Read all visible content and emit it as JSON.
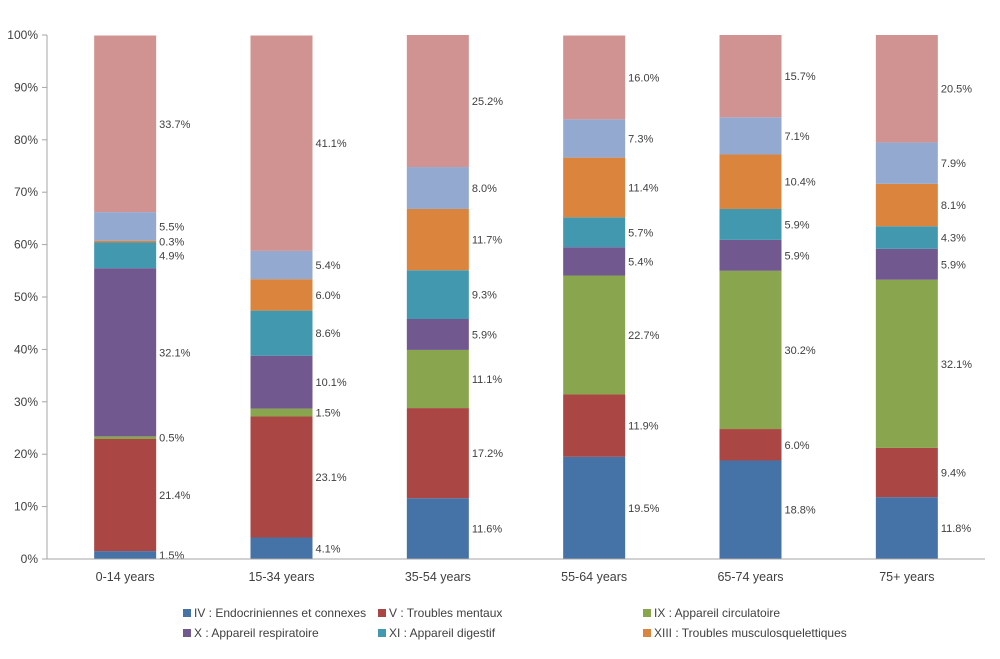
{
  "chart_data": {
    "type": "bar",
    "stacked": true,
    "percent": true,
    "title": "",
    "xlabel": "",
    "ylabel": "",
    "ylim": [
      0,
      100
    ],
    "yticks": [
      "0%",
      "10%",
      "20%",
      "30%",
      "40%",
      "50%",
      "60%",
      "70%",
      "80%",
      "90%",
      "100%"
    ],
    "grid": false,
    "legend_position": "bottom",
    "categories": [
      "0-14 years",
      "15-34 years",
      "35-54 years",
      "55-64 years",
      "65-74 years",
      "75+ years"
    ],
    "series": [
      {
        "name": "IV : Endocriniennes et connexes",
        "color": "#4572A7",
        "in_legend": true,
        "values": [
          1.5,
          4.1,
          11.6,
          19.5,
          18.8,
          11.8
        ]
      },
      {
        "name": "V : Troubles mentaux",
        "color": "#AA4643",
        "in_legend": true,
        "values": [
          21.4,
          23.1,
          17.2,
          11.9,
          6.0,
          9.4
        ]
      },
      {
        "name": "IX : Appareil circulatoire",
        "color": "#89A54E",
        "in_legend": true,
        "values": [
          0.5,
          1.5,
          11.1,
          22.7,
          30.2,
          32.1
        ]
      },
      {
        "name": "X : Appareil respiratoire",
        "color": "#71588F",
        "in_legend": true,
        "values": [
          32.1,
          10.1,
          5.9,
          5.4,
          5.9,
          5.9
        ]
      },
      {
        "name": "XI : Appareil digestif",
        "color": "#4198AF",
        "in_legend": true,
        "values": [
          4.9,
          8.6,
          9.3,
          5.7,
          5.9,
          4.3
        ]
      },
      {
        "name": "XIII : Troubles musculosquelettiques",
        "color": "#DB843D",
        "in_legend": true,
        "values": [
          0.3,
          6.0,
          11.7,
          11.4,
          10.4,
          8.1
        ]
      },
      {
        "name": "",
        "color": "#93A9CF",
        "in_legend": false,
        "values": [
          5.5,
          5.4,
          8.0,
          7.3,
          7.1,
          7.9
        ]
      },
      {
        "name": "",
        "color": "#D19392",
        "in_legend": false,
        "values": [
          33.7,
          41.1,
          25.2,
          16.0,
          15.7,
          20.5
        ]
      }
    ],
    "data_labels": [
      [
        "1.5%",
        "21.4%",
        "0.5%",
        "32.1%",
        "4.9%",
        "0.3%",
        "5.5%",
        "33.7%"
      ],
      [
        "4.1%",
        "23.1%",
        "1.5%",
        "10.1%",
        "8.6%",
        "6.0%",
        "5.4%",
        "41.1%"
      ],
      [
        "11.6%",
        "17.2%",
        "11.1%",
        "5.9%",
        "9.3%",
        "11.7%",
        "8.0%",
        "25.2%"
      ],
      [
        "19.5%",
        "11.9%",
        "22.7%",
        "5.4%",
        "5.7%",
        "11.4%",
        "7.3%",
        "16.0%"
      ],
      [
        "18.8%",
        "6.0%",
        "30.2%",
        "5.9%",
        "5.9%",
        "10.4%",
        "7.1%",
        "15.7%"
      ],
      [
        "11.8%",
        "9.4%",
        "32.1%",
        "5.9%",
        "4.3%",
        "8.1%",
        "7.9%",
        "20.5%"
      ]
    ]
  },
  "legend": {
    "items": [
      {
        "label": "IV : Endocriniennes et connexes",
        "color": "#4572A7"
      },
      {
        "label": "V : Troubles mentaux",
        "color": "#AA4643"
      },
      {
        "label": "IX : Appareil circulatoire",
        "color": "#89A54E"
      },
      {
        "label": "X : Appareil respiratoire",
        "color": "#71588F"
      },
      {
        "label": "XI : Appareil digestif",
        "color": "#4198AF"
      },
      {
        "label": "XIII : Troubles musculosquelettiques",
        "color": "#DB843D"
      }
    ]
  }
}
